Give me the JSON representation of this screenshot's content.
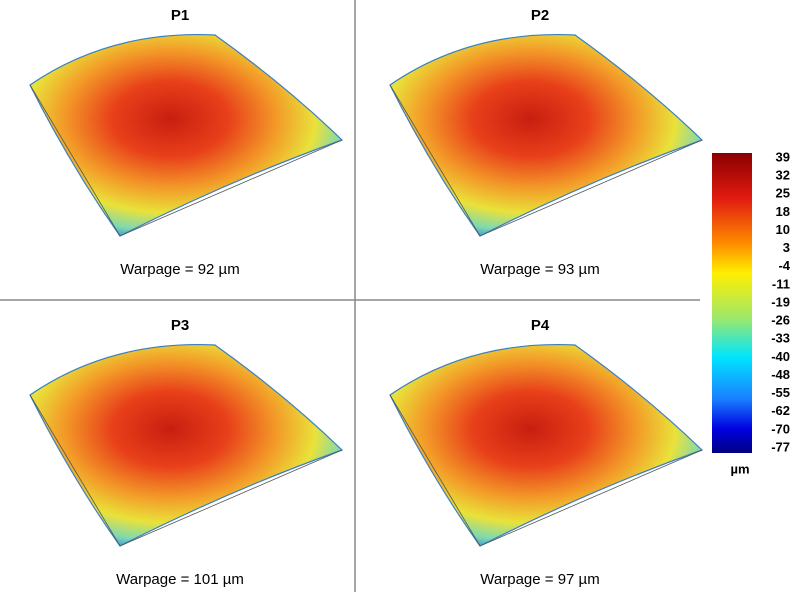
{
  "panels": [
    {
      "title": "P1",
      "caption": "Warpage = 92 µm"
    },
    {
      "title": "P2",
      "caption": "Warpage = 93 µm"
    },
    {
      "title": "P3",
      "caption": "Warpage = 101 µm"
    },
    {
      "title": "P4",
      "caption": "Warpage = 97 µm"
    }
  ],
  "colorbar": {
    "labels": [
      "39",
      "32",
      "25",
      "18",
      "10",
      "3",
      "-4",
      "-11",
      "-19",
      "-26",
      "-33",
      "-40",
      "-48",
      "-55",
      "-62",
      "-70",
      "-77"
    ],
    "unit": "µm"
  }
}
